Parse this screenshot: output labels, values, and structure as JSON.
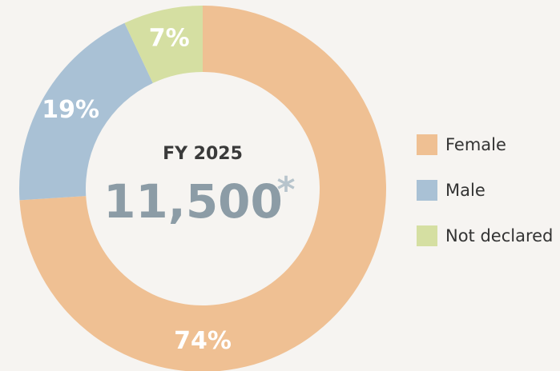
{
  "chart_data": {
    "type": "donut",
    "center": {
      "title": "FY 2025",
      "value": "11,500",
      "note": "*"
    },
    "categories": [
      "Female",
      "Male",
      "Not declared"
    ],
    "values": [
      74,
      19,
      7
    ],
    "value_labels": [
      "74%",
      "19%",
      "7%"
    ],
    "colors": [
      "#efc093",
      "#a9c1d5",
      "#d5dfa2"
    ],
    "legend": "right"
  }
}
